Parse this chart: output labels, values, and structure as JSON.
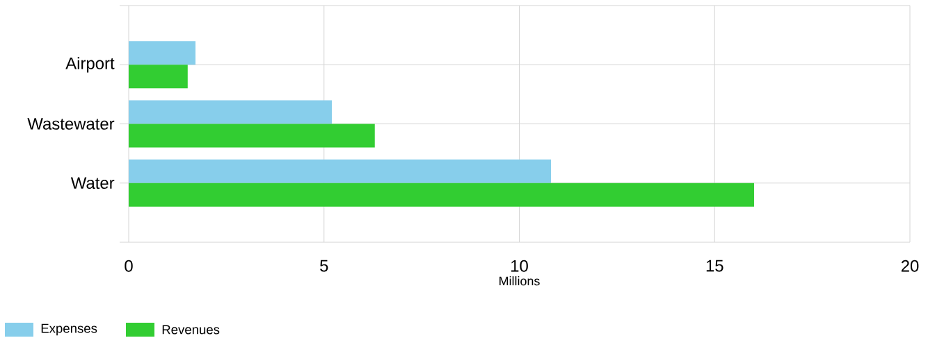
{
  "chart_data": {
    "type": "bar",
    "orientation": "horizontal",
    "categories": [
      "Airport",
      "Wastewater",
      "Water"
    ],
    "series": [
      {
        "name": "Expenses",
        "color": "#87ceeb",
        "values": [
          1.71,
          5.2,
          10.81
        ]
      },
      {
        "name": "Revenues",
        "color": "#32cd32",
        "values": [
          1.51,
          6.3,
          16.01
        ]
      }
    ],
    "xlabel": "Millions",
    "xlim": [
      0,
      20
    ],
    "xticks": [
      0,
      5,
      10,
      15,
      20
    ],
    "grid": true,
    "legend": "bottom left"
  }
}
